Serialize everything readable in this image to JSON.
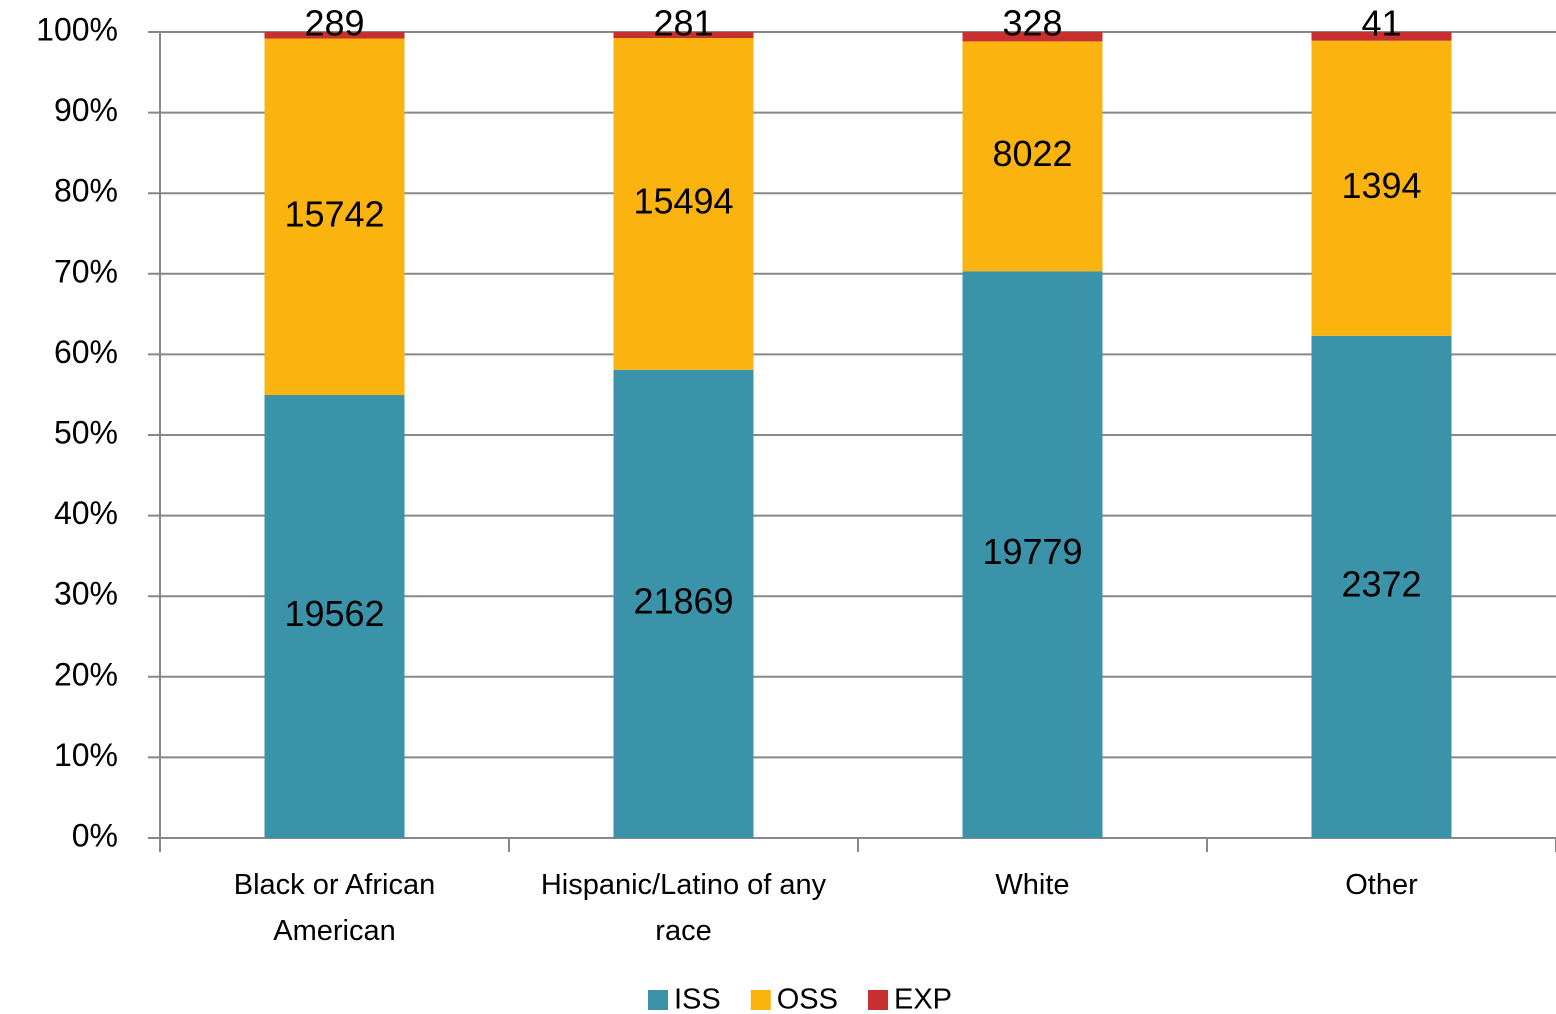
{
  "chart_data": {
    "type": "bar",
    "stacking": "percent",
    "categories": [
      "Black or African American",
      "Hispanic/Latino of any race",
      "White",
      "Other"
    ],
    "series": [
      {
        "name": "ISS",
        "color": "#3a93a8",
        "values": [
          19562,
          21869,
          19779,
          2372
        ]
      },
      {
        "name": "OSS",
        "color": "#fbb40f",
        "values": [
          15742,
          15494,
          8022,
          1394
        ]
      },
      {
        "name": "EXP",
        "color": "#c8302f",
        "values": [
          289,
          281,
          328,
          41
        ]
      }
    ],
    "ylim": [
      0,
      100
    ],
    "yticks": [
      {
        "value": 0,
        "label": "0%"
      },
      {
        "value": 10,
        "label": "10%"
      },
      {
        "value": 20,
        "label": "20%"
      },
      {
        "value": 30,
        "label": "30%"
      },
      {
        "value": 40,
        "label": "40%"
      },
      {
        "value": 50,
        "label": "50%"
      },
      {
        "value": 60,
        "label": "60%"
      },
      {
        "value": 70,
        "label": "70%"
      },
      {
        "value": 80,
        "label": "80%"
      },
      {
        "value": 90,
        "label": "90%"
      },
      {
        "value": 100,
        "label": "100%"
      }
    ],
    "grid": true,
    "legend": "bottom"
  }
}
